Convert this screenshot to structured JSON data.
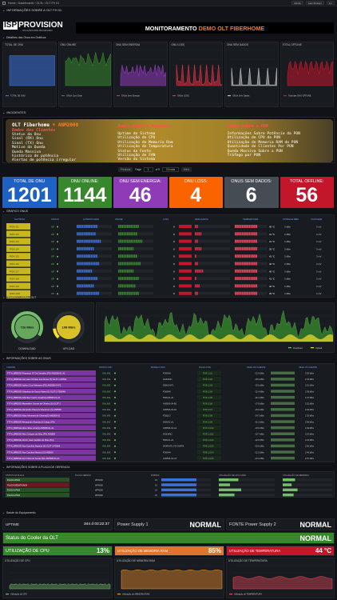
{
  "topbar": {
    "breadcrumb": "Home › Dashboards › OLTs › OLT FH 01",
    "time_range": "Last 30 days",
    "refresh": "1m",
    "user": "Admin"
  },
  "logo": {
    "text": "ISPPROVISION",
    "tagline": "SOLUÇÕES PARA PROVEDORES"
  },
  "header": {
    "title_white": "MONITORAMENTO ",
    "title_orange": "DEMO OLT FIBERHOME"
  },
  "rows": {
    "info": "INFORMAÇÕES SOBRE A OLT FH 01",
    "details": "Detalhes das Onus em Gráficos",
    "incidents": "INCIDENTES",
    "graph_onus": "GRÁFICO ONUS",
    "traffic": "TRÁFEGO GERAL OLT",
    "onus_info": "INFORMAÇÕES SOBRE AS ONUS",
    "board_info": "INFORMAÇÕES SOBRE A PLACA DE GERENCIA",
    "health": "Saúde do Equipamento"
  },
  "mini_charts": [
    {
      "title": "TOTAL DE ONU",
      "legend": "TOTAL DE ONU",
      "color": "#3d71d9"
    },
    {
      "title": "ONU ONLINE",
      "legend": "ONUs Com Sinal",
      "color": "#37872d"
    },
    {
      "title": "ONU SEM ENERGIA",
      "legend": "ONUs Sem Energia",
      "color": "#8f3bb8"
    },
    {
      "title": "ONU LOSS",
      "legend": "ONUs LOSS",
      "color": "#e02f44"
    },
    {
      "title": "ONU SEM DADOS",
      "legend": "ONUs Sem Dados",
      "color": "#c4c4c4"
    },
    {
      "title": "TOTAL OFFLINE",
      "legend": "Total das ONU OFFLINE",
      "color": "#c4162a"
    }
  ],
  "incident_box": {
    "title1": "OLT Fiberhome",
    "title2": " + ANM2000",
    "col1_header": "Dados dos Clientes",
    "col1": [
      "Status da Onu",
      "Sinal (RX) Onu",
      "Sinal (TX) Onu",
      "Motivo da Queda",
      "Queda Massiva",
      "histórico de potência",
      "Alertas de potência irregular"
    ],
    "col2_header": "Dados Sobre o Hardware",
    "col2": [
      "Uptime do Sistema",
      "Utilização de CPU",
      "Utilização de Memoria Ram",
      "Utilização de Temperatura",
      "Status da Fonte",
      "Utilização de FAN",
      "Versão do Sistema"
    ],
    "col3_header": "Dados Sobre o PON",
    "col3": [
      "Informações Sobre Potência da PON",
      "Utilização de CPU da PON",
      "Utilização de Memoria RAM da PON",
      "Quantidade de Clientes Por PON",
      "Queda Massiva Sobre a PON",
      "Tráfego por PON"
    ]
  },
  "pager": {
    "prev": "Previous",
    "page_label": "Page",
    "page": "1",
    "of": "of 9",
    "rows": "10 rows",
    "next": "Next"
  },
  "stats": [
    {
      "label": "TOTAL DE ONU",
      "value": "1201",
      "color": "#1f60c4"
    },
    {
      "label": "ONU ONLINE:",
      "value": "1144",
      "color": "#37872d"
    },
    {
      "label": "ONU SEM ENERGIA:",
      "value": "46",
      "color": "#8f3bb8"
    },
    {
      "label": "ONU LOSS:",
      "value": "4",
      "color": "#fa6400"
    },
    {
      "label": "ONUS SEM DADOS:",
      "value": "6",
      "color": "#464c54"
    },
    {
      "label": "TOTAL OFFLINE:",
      "value": "56",
      "color": "#c4162a"
    }
  ],
  "pon_table": {
    "headers": [
      "SLOT/PON",
      "STATUS",
      "AUTENTICADAS",
      "ONLINE",
      "LOSS",
      "DESLIGADAS",
      "TEMPERATURA",
      "POTENCIA DBM",
      "VOLTAGEM"
    ],
    "rows": [
      {
        "pon": "PON 1/1",
        "status": "UP",
        "auth": 0.62,
        "online": 0.6,
        "loss": "0",
        "off": 0.1,
        "temp": "40 °C",
        "pot": "3 dBm",
        "volt": "3 mV"
      },
      {
        "pon": "PON 1/2",
        "status": "UP",
        "auth": 0.55,
        "online": 0.53,
        "loss": "0",
        "off": 0.22,
        "temp": "41 °C",
        "pot": "3 dBm",
        "volt": "3 mV"
      },
      {
        "pon": "PON 1/3",
        "status": "UP",
        "auth": 0.7,
        "online": 0.68,
        "loss": "0",
        "off": 0.08,
        "temp": "41 °C",
        "pot": "3 dBm",
        "volt": "3 mV"
      },
      {
        "pon": "PON 1/4",
        "status": "UP",
        "auth": 0.48,
        "online": 0.46,
        "loss": "0",
        "off": 0.18,
        "temp": "39 °C",
        "pot": "3 dBm",
        "volt": "3 mV"
      },
      {
        "pon": "PON 1/5",
        "status": "UP",
        "auth": 0.58,
        "online": 0.56,
        "loss": "0",
        "off": 0.05,
        "temp": "42 °C",
        "pot": "3 dBm",
        "volt": "3 mV"
      },
      {
        "pon": "PON 1/6",
        "status": "UP",
        "auth": 0.66,
        "online": 0.64,
        "loss": "0",
        "off": 0.12,
        "temp": "40 °C",
        "pot": "3 dBm",
        "volt": "3 mV"
      },
      {
        "pon": "PON 1/7",
        "status": "UP",
        "auth": 0.45,
        "online": 0.44,
        "loss": "0",
        "off": 0.25,
        "temp": "40 °C",
        "pot": "3 dBm",
        "volt": "3 mV"
      },
      {
        "pon": "PON 1/8",
        "status": "UP",
        "auth": 0.6,
        "online": 0.58,
        "loss": "0",
        "off": 0.07,
        "temp": "41 °C",
        "pot": "3 dBm",
        "volt": "3 mV"
      },
      {
        "pon": "PON 1/9",
        "status": "UP",
        "auth": 0.52,
        "online": 0.5,
        "loss": "0",
        "off": 0.15,
        "temp": "40 °C",
        "pot": "3 dBm",
        "volt": "3 mV"
      },
      {
        "pon": "PON 1/10",
        "status": "UP",
        "auth": 0.63,
        "online": 0.61,
        "loss": "0",
        "off": 0.09,
        "temp": "39 °C",
        "pot": "3 dBm",
        "volt": "3 mV"
      },
      {
        "pon": "PON 1/11",
        "status": "UP",
        "auth": 0.4,
        "online": 0.39,
        "loss": "0",
        "off": 0.3,
        "temp": "40 °C",
        "pot": "3 dBm",
        "volt": "3 mV"
      },
      {
        "pon": "PON 1/12",
        "status": "UP",
        "auth": 0.57,
        "online": 0.55,
        "loss": "0",
        "off": 0.11,
        "temp": "41 °C",
        "pot": "3 dBm",
        "volt": "3 mV"
      }
    ]
  },
  "traffic": {
    "download_value": "726 Mb/s",
    "download_label": "DOWNLOAD",
    "download_fill": 0.72,
    "upload_value": "108 Mb/s",
    "upload_label": "UPLOAD",
    "upload_fill": 0.11,
    "legend": [
      "Download",
      "Upload"
    ]
  },
  "onu_table": {
    "headers": [
      "CLIENTE",
      "STATUS ONU",
      "MODELO ONU",
      "PLACA PON",
      "SINAL RX CLIENTE",
      "SINAL TX CLIENTE"
    ],
    "rows": [
      {
        "cli": "FTTH_BRIDGE-Francisco N° Da Carvalho (FD) AN5506-01-A1",
        "st": "ONLINE",
        "mod": "FD604H",
        "pon": "PON 1/1/1",
        "rx": "-21.9 dBm",
        "tx": "2.55 dBm"
      },
      {
        "cli": "FTTH_BRIDGE-Germano Nicolau dos Nunes (S) GL3T-1-FD604",
        "st": "ONLINE",
        "mod": "HG6243C",
        "pon": "PON 1/1/2",
        "rx": "-18.3 dBm",
        "tx": "2.44 dBm"
      },
      {
        "cli": "FTTH_BRIDGE-Jaílton Cruz Menezes (FD) AN5506-04-F1",
        "st": "ONLINE",
        "mod": "5506-04-F1",
        "pon": "PON 1/1/3",
        "rx": "-19.6 dBm",
        "tx": "2.61 dBm"
      },
      {
        "cli": "FTTH_BRIDGE-Gleydson de Souza Vieira (S) GL3T-1-FD604H",
        "st": "ONLINE",
        "mod": "FD604H",
        "pon": "PON 1/1/4",
        "rx": "-22.4 dBm",
        "tx": "2.38 dBm"
      },
      {
        "cli": "FTTH_BRIDGE-Adenilse Castro Lima(FH) AN5506-01-A1",
        "st": "ONLINE",
        "mod": "5506-01-A1",
        "pon": "PON 1/1/5",
        "rx": "-20.1 dBm",
        "tx": "2.47 dBm"
      },
      {
        "cli": "FTTH_BRIDGE-Maxwellen Gomes de Oliveira (S) GL3T-1",
        "st": "ONLINE",
        "mod": "AN5506-04-B2",
        "pon": "PON 1/1/6",
        "rx": "-17.8 dBm",
        "tx": "2.52 dBm"
      },
      {
        "cli": "FTTH_BRIDGE-Alexandre Paiva do Nascimen (S) AN5506",
        "st": "ONLINE",
        "mod": "AN5506-04-FA",
        "pon": "PON 1/1/7",
        "rx": "-23.0 dBm",
        "tx": "2.40 dBm"
      },
      {
        "cli": "FTTH_BRIDGE-Allan Menezes de Oliveira(S) AN5506-01",
        "st": "ONLINE",
        "mod": "FD511G",
        "pon": "PON 1/1/8",
        "rx": "-24.7 dBm",
        "tx": "2.35 dBm"
      },
      {
        "cli": "FTTH_BRIDGE-Alessandro Alcantar de Araujo (FH)",
        "st": "ONLINE",
        "mod": "5506-01-A1",
        "pon": "PON 1/1/9",
        "rx": "-21.2 dBm",
        "tx": "2.58 dBm"
      },
      {
        "cli": "FTTH_BRIDGE-Aline Silva Lima(S) AN5506-01-A1",
        "st": "ONLINE",
        "mod": "AN5506-01-A1",
        "pon": "PON 1/1/10",
        "rx": "-19.9 dBm",
        "tx": "2.49 dBm"
      },
      {
        "cli": "FTTH_BRIDGE-Alex Campos da Silva (FH) AN5506",
        "st": "ONLINE",
        "mod": "HG6145D",
        "pon": "PON 1/1/11",
        "rx": "-18.7 dBm",
        "tx": "2.53 dBm"
      },
      {
        "cli": "FTTH_BRIDGE-Alcirio José Candido da Silva (FH)",
        "st": "ONLINE",
        "mod": "5506-01-A1",
        "pon": "PON 1/1/12",
        "rx": "-22.8 dBm",
        "tx": "2.42 dBm"
      },
      {
        "cli": "FTTH_BRIDGE-Ana Carolina Siqueira (S) GL3T-1-FD604",
        "st": "ONLINE",
        "mod": "WORKATL FD CWIFI6",
        "pon": "PON 1/1/13",
        "rx": "-20.6 dBm",
        "tx": "2.50 dBm"
      },
      {
        "cli": "FTTH_BRIDGE-Ana Carolina Moreira (S) AN5506",
        "st": "ONLINE",
        "mod": "FD604H",
        "pon": "PON 1/1/14",
        "rx": "-21.5 dBm",
        "tx": "2.46 dBm"
      },
      {
        "cli": "FTTH_BRIDGE-Ana Clara de Sousa (FH) AN5506-01-A1",
        "st": "ONLINE",
        "mod": "AN5506-01-A1",
        "pon": "PON 1/1/15",
        "rx": "-19.3 dBm",
        "tx": "2.57 dBm"
      }
    ]
  },
  "board": {
    "headers": [
      "STATUS DA PLACA",
      "PLACA VERSÃO",
      "PORTAS",
      "UTILIZAÇÃO DE CPU CARD",
      "UTILIZAÇÃO DE MEMORIA"
    ],
    "rows": [
      {
        "st": "PLACA ATIVA",
        "stc": "#37872d",
        "ver": "WF6000",
        "ports": "16",
        "cpu": 0.35,
        "mem": 0.25
      },
      {
        "st": "PLACA DESATIVADA",
        "stc": "#c4162a",
        "ver": "WF6000",
        "ports": "16",
        "cpu": 0.2,
        "mem": 0.18
      },
      {
        "st": "PLACA ATIVA",
        "stc": "#37872d",
        "ver": "WF6000",
        "ports": "16",
        "cpu": 0.4,
        "mem": 0.3
      },
      {
        "st": "PLACA ATIVA",
        "stc": "#37872d",
        "ver": "WF6000",
        "ports": "16",
        "cpu": 0.28,
        "mem": 0.22
      }
    ]
  },
  "health": {
    "uptime_label": "UPTIME",
    "uptime_value": "344 d 03:22:37",
    "ps1_label": "Power Supply 1",
    "ps1_value": "NORMAL",
    "ps2_label": "FONTE Power Supply 2",
    "ps2_value": "NORMAL",
    "cooler_label": "Status do Cooler da OLT",
    "cooler_value": "NORMAL",
    "cpu_label": "UTILIZAÇÃO DE CPU",
    "cpu_value": "13%",
    "mem_label": "UTILIZAÇÃO DE MEMORIA RAM",
    "mem_value": "85%",
    "temp_label": "UTILIZAÇÃO DE TEMPERATURA",
    "temp_value": "44 °C"
  },
  "bottom_charts": [
    {
      "title": "UTILIZAÇÃO DE CPU",
      "legend": "Utilização de CPU",
      "color": "#73bf69"
    },
    {
      "title": "UTILIZAÇÃO DE MEMORIA RAM",
      "legend": "Utilização de MEMORIA RAM",
      "color": "#ff9830"
    },
    {
      "title": "UTILIZAÇÃO DE TEMPERATURA",
      "legend": "Utilização de TEMPERATURA",
      "color": "#f2495c"
    }
  ]
}
